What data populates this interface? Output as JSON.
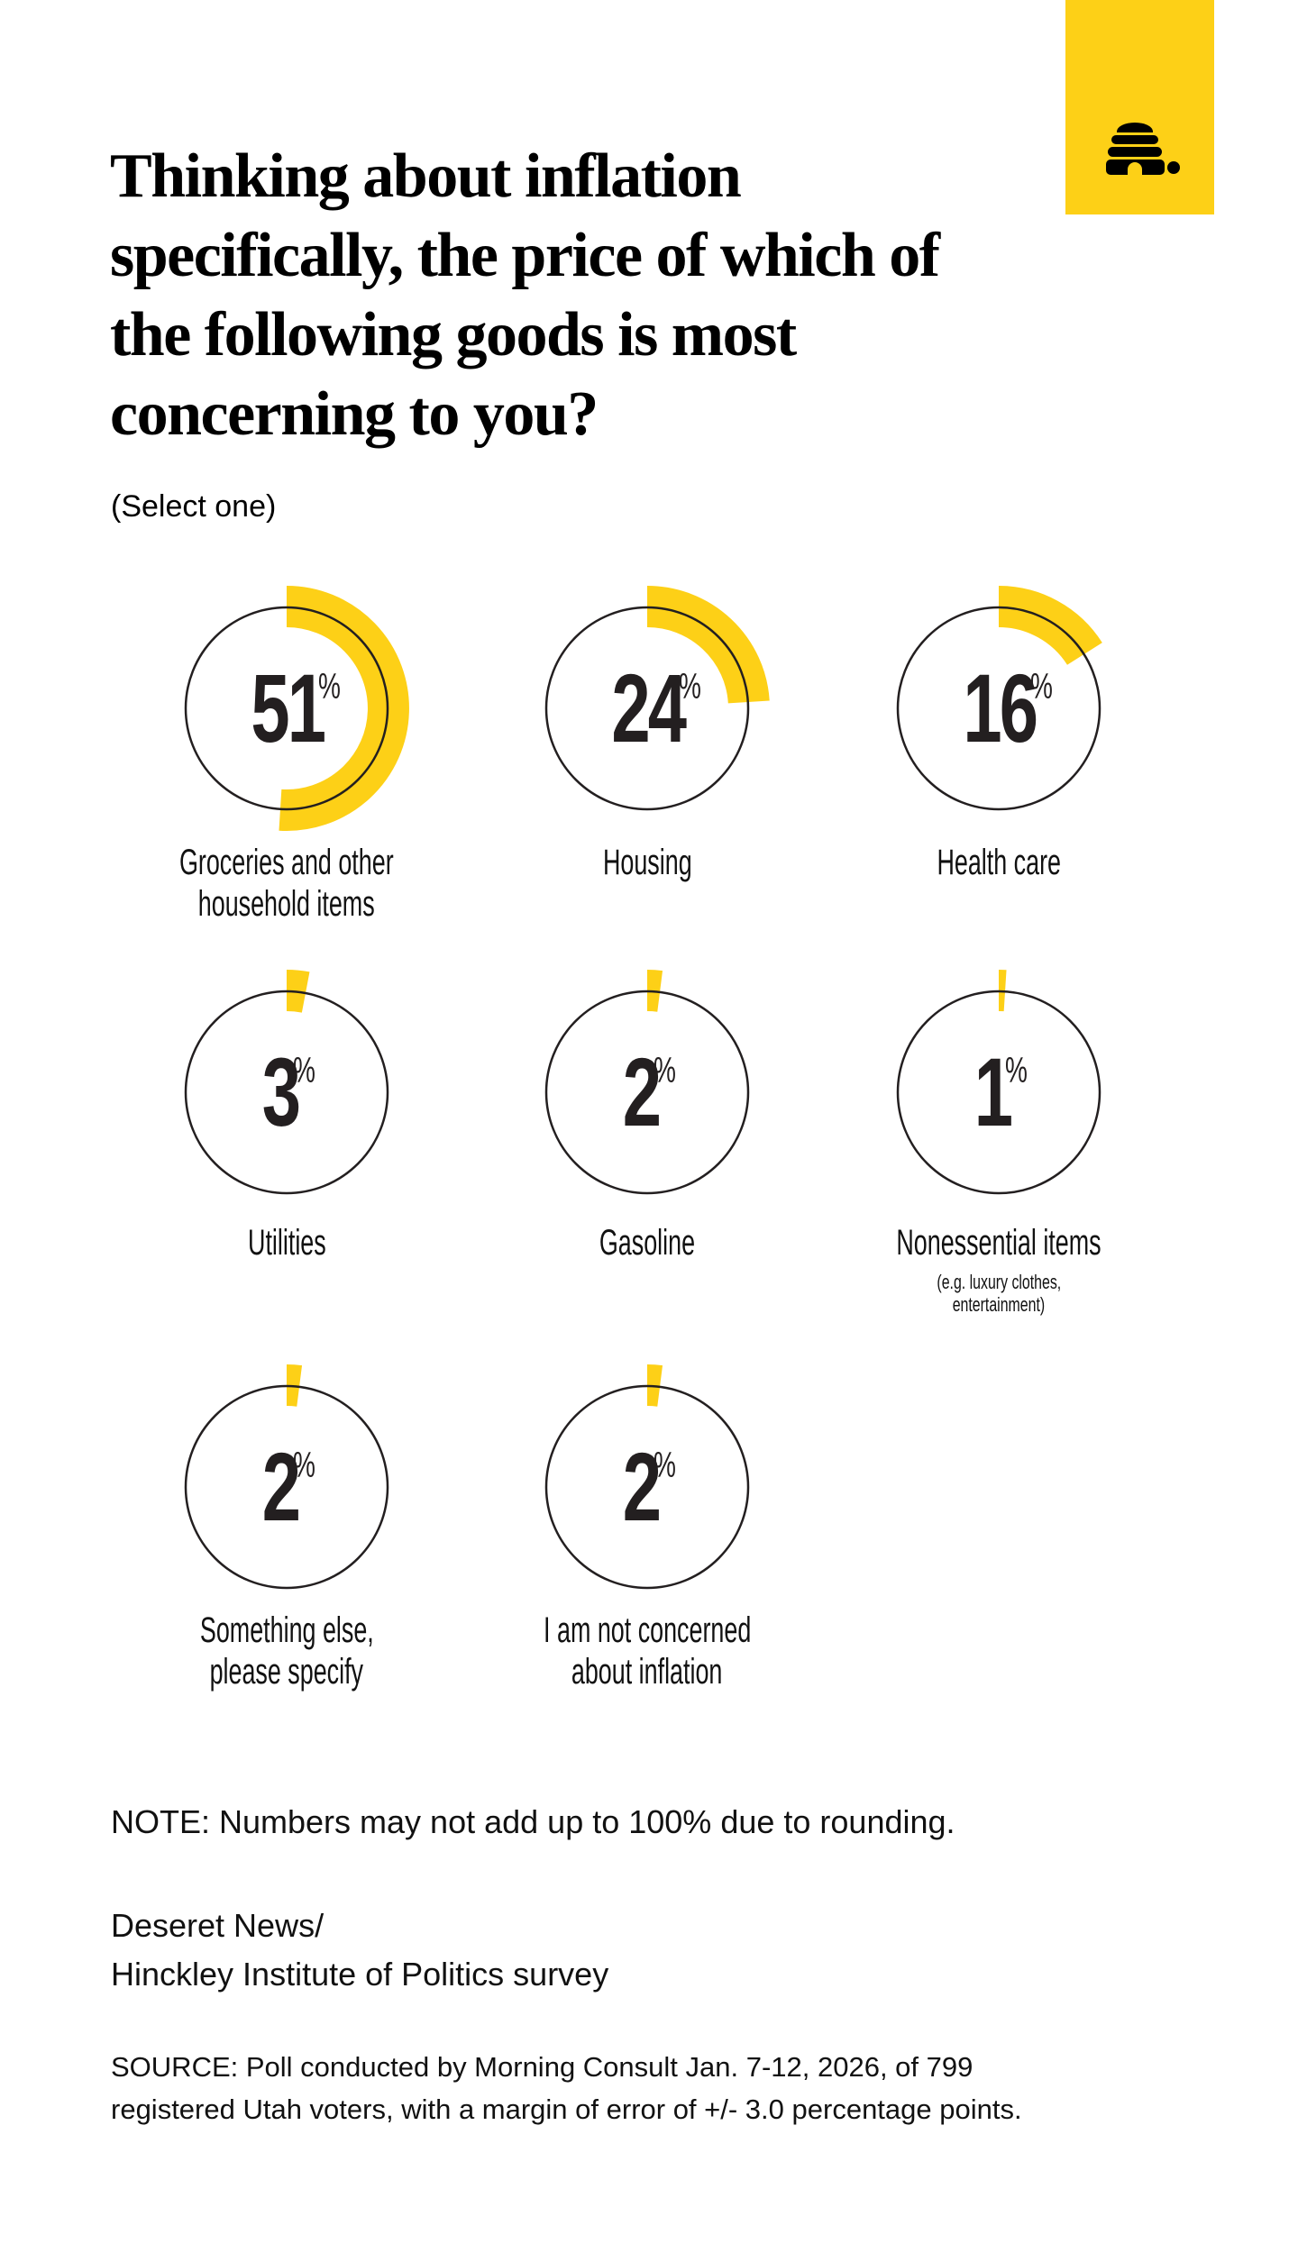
{
  "brand": {
    "logo_icon": "beehive-icon",
    "block_color": "#FDD017"
  },
  "header": {
    "title_lines": [
      "Thinking about inflation",
      "specifically, the price of which of",
      "the following goods is most",
      "concerning to you?"
    ],
    "subtitle": "(Select one)"
  },
  "colors": {
    "accent": "#FDD017",
    "ring": "#231F20",
    "text": "#231F20"
  },
  "items": [
    {
      "value": "51",
      "sign": "%",
      "label_lines": [
        "Groceries and other",
        "household items"
      ],
      "sub_lines": []
    },
    {
      "value": "24",
      "sign": "%",
      "label_lines": [
        "Housing"
      ],
      "sub_lines": []
    },
    {
      "value": "16",
      "sign": "%",
      "label_lines": [
        "Health care"
      ],
      "sub_lines": []
    },
    {
      "value": "3",
      "sign": "%",
      "label_lines": [
        "Utilities"
      ],
      "sub_lines": []
    },
    {
      "value": "2",
      "sign": "%",
      "label_lines": [
        "Gasoline"
      ],
      "sub_lines": []
    },
    {
      "value": "1",
      "sign": "%",
      "label_lines": [
        "Nonessential items"
      ],
      "sub_lines": [
        "(e.g. luxury clothes,",
        "entertainment)"
      ]
    },
    {
      "value": "2",
      "sign": "%",
      "label_lines": [
        "Something else,",
        "please specify"
      ],
      "sub_lines": []
    },
    {
      "value": "2",
      "sign": "%",
      "label_lines": [
        "I am not concerned",
        "about inflation"
      ],
      "sub_lines": []
    }
  ],
  "footer": {
    "note": "NOTE: Numbers may not add up to 100% due to rounding.",
    "credit_lines": [
      "Deseret News/",
      "Hinckley Institute of Politics survey"
    ],
    "source_lines": [
      "SOURCE: Poll conducted by Morning Consult Jan. 7-12, 2026, of 799",
      "registered Utah voters, with a margin of error of +/- 3.0 percentage points."
    ]
  },
  "chart_data": {
    "type": "pie",
    "subtype": "radial-progress-rings",
    "title": "Thinking about inflation specifically, the price of which of the following goods is most concerning to you?",
    "subtitle": "(Select one)",
    "unit": "%",
    "categories": [
      "Groceries and other household items",
      "Housing",
      "Health care",
      "Utilities",
      "Gasoline",
      "Nonessential items (e.g. luxury clothes, entertainment)",
      "Something else, please specify",
      "I am not concerned about inflation"
    ],
    "values": [
      51,
      24,
      16,
      3,
      2,
      1,
      2,
      2
    ],
    "layout": {
      "columns": 3,
      "rows": 3,
      "arc_start": "12 o'clock",
      "arc_direction": "clockwise",
      "legend": "none",
      "grid": false
    },
    "annotations": [
      "NOTE: Numbers may not add up to 100% due to rounding.",
      "Deseret News/ Hinckley Institute of Politics survey",
      "SOURCE: Poll conducted by Morning Consult Jan. 7-12, 2026, of 799 registered Utah voters, with a margin of error of +/- 3.0 percentage points."
    ]
  }
}
